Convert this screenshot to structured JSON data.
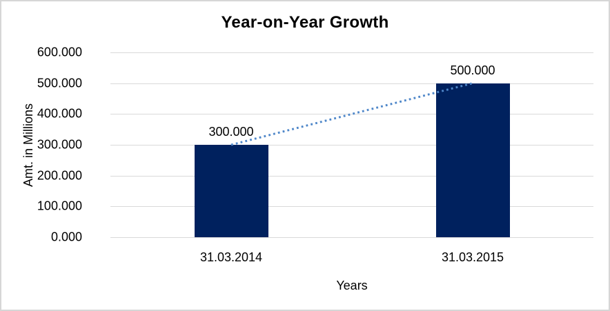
{
  "chart_data": {
    "type": "bar",
    "title": "Year-on-Year Growth",
    "categories": [
      "31.03.2014",
      "31.03.2015"
    ],
    "values": [
      300,
      500
    ],
    "value_labels": [
      "300.000",
      "500.000"
    ],
    "xlabel": "Years",
    "ylabel": "Amt. in Millions",
    "ylim": [
      0,
      600
    ],
    "ytick_step": 100,
    "ytick_labels": [
      "0.000",
      "100.000",
      "200.000",
      "300.000",
      "400.000",
      "500.000",
      "600.000"
    ],
    "grid": true,
    "legend": "none",
    "trendline": {
      "type": "linear",
      "style": "dotted",
      "connects": "bar-top centers from 300 to 500"
    }
  },
  "colors": {
    "bar": "#00215E",
    "trendline": "#4F87C9",
    "gridline": "#D9D9D9",
    "text": "#000000",
    "frame_border": "#D6D6D6",
    "background": "#FFFFFF"
  }
}
